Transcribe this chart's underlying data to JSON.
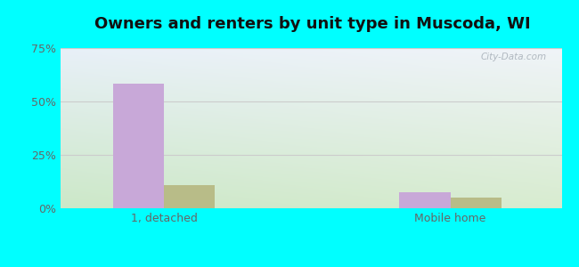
{
  "title": "Owners and renters by unit type in Muscoda, WI",
  "categories": [
    "1, detached",
    "Mobile home"
  ],
  "owner_values": [
    58.5,
    7.5
  ],
  "renter_values": [
    11.0,
    5.0
  ],
  "owner_color": "#c8a8d8",
  "renter_color": "#b8bc88",
  "ylim": [
    0,
    75
  ],
  "yticks": [
    0,
    25,
    50,
    75
  ],
  "yticklabels": [
    "0%",
    "25%",
    "50%",
    "75%"
  ],
  "bar_width": 0.32,
  "background_cyan": "#00ffff",
  "grid_color": "#cccccc",
  "watermark": "City-Data.com",
  "title_fontsize": 13,
  "tick_fontsize": 9,
  "legend_fontsize": 9,
  "x_positions": [
    1.0,
    2.8
  ],
  "xlim": [
    0.35,
    3.5
  ]
}
